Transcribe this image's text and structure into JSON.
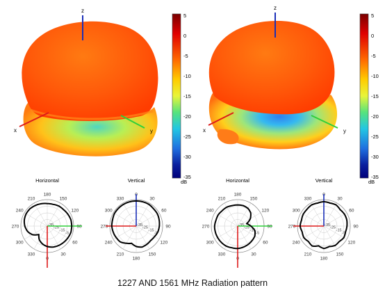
{
  "caption": "1227 AND 1561 MHz Radiation pattern",
  "axes": {
    "x": "x",
    "y": "y",
    "z": "z"
  },
  "colorbar": {
    "unit": "dB",
    "ticks": [
      "5",
      "0",
      "-5",
      "-10",
      "-15",
      "-20",
      "-25",
      "-30",
      "-35"
    ],
    "range": [
      -35,
      5
    ],
    "colors": [
      "#7a0000",
      "#e00000",
      "#ff6a00",
      "#ffcc00",
      "#e8f53a",
      "#56e37d",
      "#22c6e3",
      "#1f6fe0",
      "#0a1f9e",
      "#00007a"
    ]
  },
  "panels": [
    {
      "horizontal": {
        "title": "Horizontal",
        "angle_labels": [
          "180",
          "150",
          "120",
          "90",
          "60",
          "30",
          "0",
          "330",
          "300",
          "270",
          "240",
          "210"
        ],
        "ring_labels": [
          "-35",
          "-25",
          "-15",
          "-5"
        ],
        "pattern_db": [
          -6,
          -6,
          -5,
          -5,
          -4,
          -3,
          -3,
          -3,
          -4,
          -5,
          -6,
          -7,
          -9,
          -12,
          -16,
          -22,
          -14,
          -9,
          -6,
          -4,
          -3,
          -3,
          -4,
          -5
        ]
      },
      "vertical": {
        "title": "Vertical",
        "angle_labels": [
          "0",
          "30",
          "60",
          "90",
          "120",
          "150",
          "180",
          "210",
          "240",
          "270",
          "300",
          "330"
        ],
        "ring_labels": [
          "-35",
          "-25",
          "-15",
          "-5"
        ],
        "pattern_db": [
          -2,
          -2,
          -2,
          -3,
          -3,
          -4,
          -5,
          -6,
          -8,
          -9,
          -8,
          -7,
          -9,
          -13,
          -10,
          -6,
          -5,
          -4,
          -3,
          -3,
          -2,
          -2,
          -2,
          -2
        ]
      }
    },
    {
      "horizontal": {
        "title": "Horizontal",
        "angle_labels": [
          "180",
          "150",
          "120",
          "90",
          "60",
          "30",
          "0",
          "330",
          "300",
          "270",
          "240",
          "210"
        ],
        "ring_labels": [
          "-35",
          "-25",
          "-15",
          "-5"
        ],
        "pattern_db": [
          -8,
          -8,
          -9,
          -12,
          -18,
          -26,
          -20,
          -13,
          -10,
          -9,
          -8,
          -7,
          -6,
          -6,
          -5,
          -5,
          -5,
          -5,
          -5,
          -6,
          -6,
          -7,
          -7,
          -8
        ]
      },
      "vertical": {
        "title": "Vertical",
        "angle_labels": [
          "0",
          "30",
          "60",
          "90",
          "120",
          "150",
          "180",
          "210",
          "240",
          "270",
          "300",
          "330"
        ],
        "ring_labels": [
          "-35",
          "-25",
          "-15",
          "-5"
        ],
        "pattern_db": [
          -3,
          -4,
          -3,
          -5,
          -4,
          -4,
          -5,
          -6,
          -5,
          -7,
          -6,
          -8,
          -6,
          -9,
          -5,
          -7,
          -5,
          -6,
          -4,
          -5,
          -4,
          -4,
          -3,
          -4
        ]
      }
    }
  ]
}
